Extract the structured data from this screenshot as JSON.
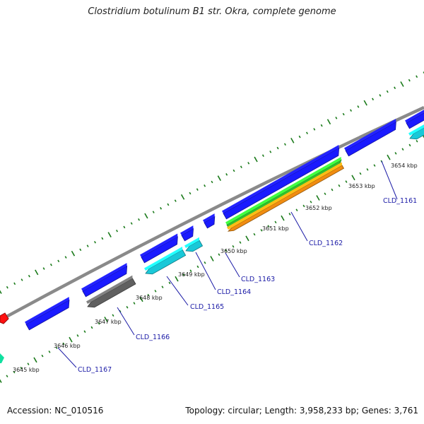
{
  "title": "Clostridium botulinum B1 str. Okra, complete genome",
  "footer": {
    "accession": "Accession: NC_010516",
    "topology": "Topology: circular; Length: 3,958,233 bp; Genes: 3,761"
  },
  "colors": {
    "forward_gene": "#1a1aff",
    "reverse_gene_cyan": "#1ac8d8",
    "gene_gray": "#606060",
    "gene_green": "#30c030",
    "gene_orange": "#f08c10",
    "gene_red": "#ff1010",
    "gene_teal": "#10e0a0",
    "backbone": "#8a8a8a",
    "tick_green": "#1a7a1a",
    "label_blue": "#1a1aa6"
  },
  "kbp_labels": [
    "3645 kbp",
    "3646 kbp",
    "3647 kbp",
    "3648 kbp",
    "3649 kbp",
    "3650 kbp",
    "3651 kbp",
    "3652 kbp",
    "3653 kbp",
    "3654 kbp"
  ],
  "gene_labels": [
    "CLD_1167",
    "CLD_1166",
    "CLD_1165",
    "CLD_1164",
    "CLD_1163",
    "CLD_1162",
    "CLD_1161"
  ]
}
